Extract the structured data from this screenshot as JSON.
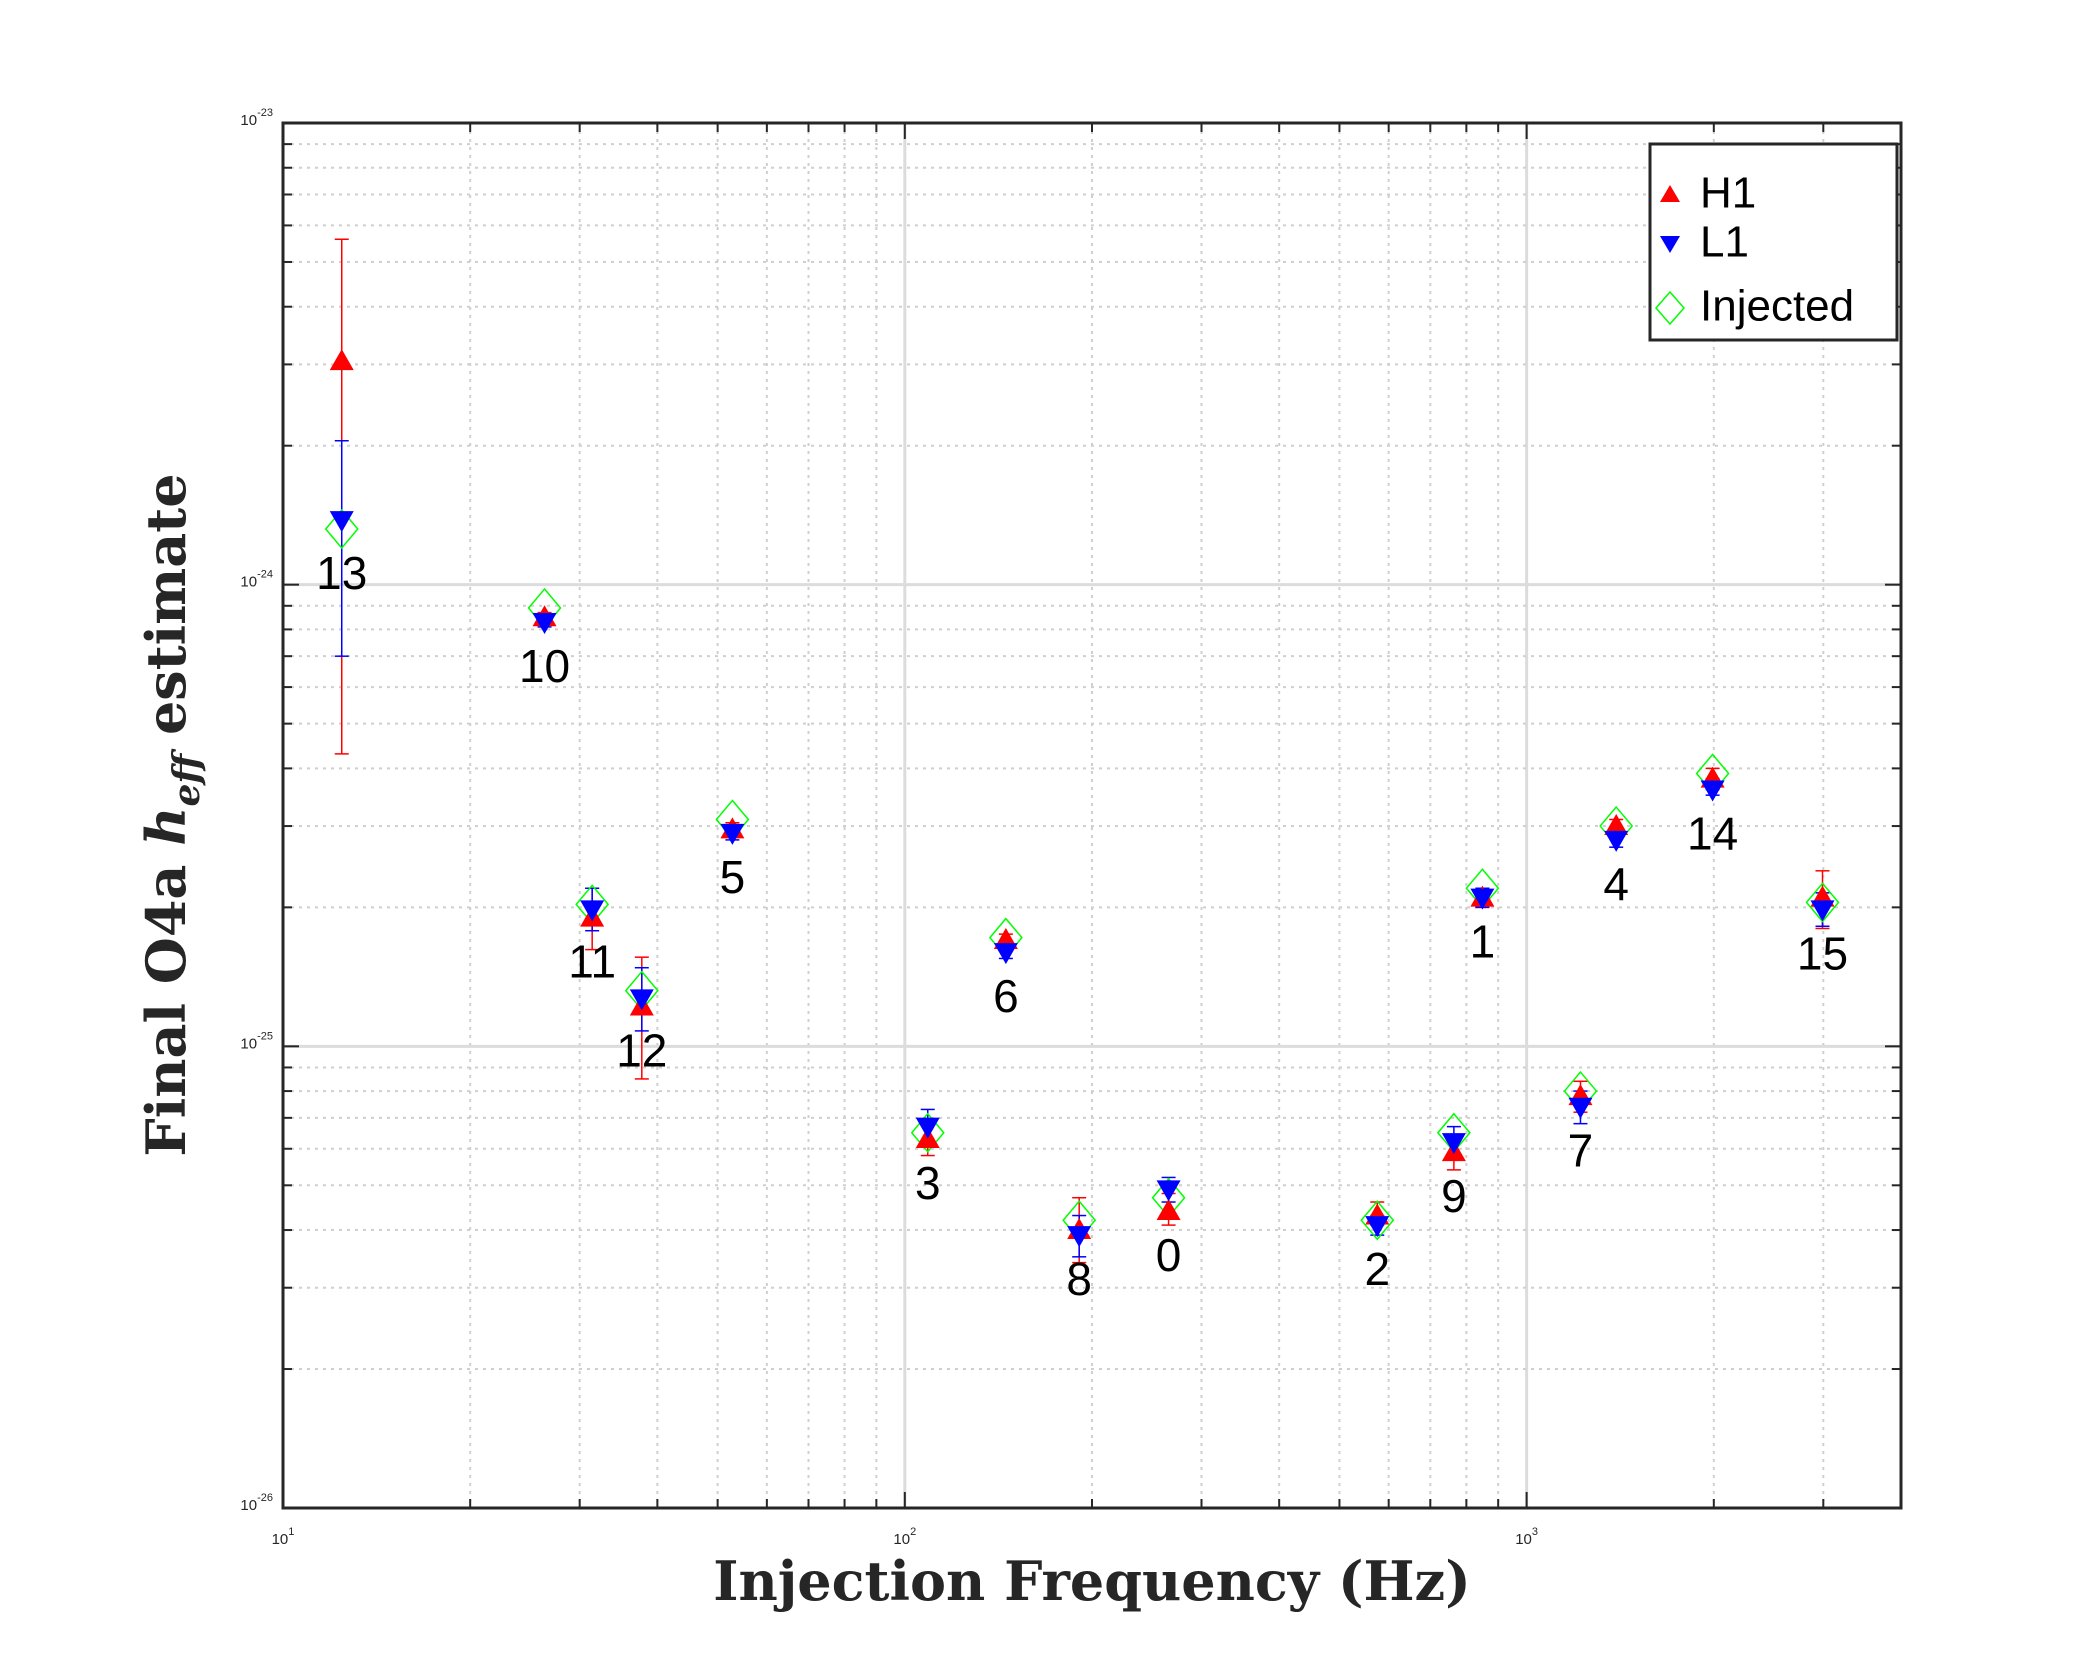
{
  "chart_data": {
    "type": "scatter",
    "title": "",
    "xlabel": "Injection Frequency (Hz)",
    "ylabel_prefix": "Final O4a ",
    "ylabel_h": "h",
    "ylabel_sub": "eff",
    "ylabel_suffix": " estimate",
    "xscale": "log",
    "yscale": "log",
    "xlim": [
      10,
      4000
    ],
    "ylim": [
      1e-26,
      1e-23
    ],
    "grid": true,
    "legend_position": "top-right",
    "x_tick_labels": [
      {
        "value": 10,
        "base": "10",
        "exp": "1"
      },
      {
        "value": 100,
        "base": "10",
        "exp": "2"
      },
      {
        "value": 1000,
        "base": "10",
        "exp": "3"
      }
    ],
    "y_tick_labels": [
      {
        "value": 1e-26,
        "base": "10",
        "exp": "-26"
      },
      {
        "value": 1e-25,
        "base": "10",
        "exp": "-25"
      },
      {
        "value": 1e-24,
        "base": "10",
        "exp": "-24"
      },
      {
        "value": 1e-23,
        "base": "10",
        "exp": "-23"
      }
    ],
    "series": [
      {
        "name": "H1",
        "marker": "triangle-up",
        "color": "#ff0000"
      },
      {
        "name": "L1",
        "marker": "triangle-down",
        "color": "#0000ff"
      },
      {
        "name": "Injected",
        "marker": "diamond-open",
        "color": "#00ff00"
      }
    ],
    "points": [
      {
        "label": "0",
        "f": 265.58,
        "h1": 4.4e-26,
        "h1_err": [
          4.1e-26,
          4.8e-26
        ],
        "l1": 4.9e-26,
        "l1_err": [
          4.6e-26,
          5.2e-26
        ],
        "inj": 4.7e-26
      },
      {
        "label": "1",
        "f": 848.93,
        "h1": 2.1e-25,
        "h1_err": [
          2e-25,
          2.2e-25
        ],
        "l1": 2.1e-25,
        "l1_err": [
          2e-25,
          2.2e-25
        ],
        "inj": 2.2e-25
      },
      {
        "label": "2",
        "f": 575.16,
        "h1": 4.3e-26,
        "h1_err": [
          4.1e-26,
          4.6e-26
        ],
        "l1": 4.1e-26,
        "l1_err": [
          3.9e-26,
          4.3e-26
        ],
        "inj": 4.2e-26
      },
      {
        "label": "3",
        "f": 108.86,
        "h1": 6.3e-26,
        "h1_err": [
          5.8e-26,
          6.9e-26
        ],
        "l1": 6.7e-26,
        "l1_err": [
          6.2e-26,
          7.3e-26
        ],
        "inj": 6.5e-26
      },
      {
        "label": "4",
        "f": 1393.3,
        "h1": 3e-25,
        "h1_err": [
          2.9e-25,
          3.1e-25
        ],
        "l1": 2.8e-25,
        "l1_err": [
          2.7e-25,
          2.9e-25
        ],
        "inj": 3e-25
      },
      {
        "label": "5",
        "f": 52.81,
        "h1": 2.95e-25,
        "h1_err": [
          2.85e-25,
          3.05e-25
        ],
        "l1": 2.9e-25,
        "l1_err": [
          2.8e-25,
          3e-25
        ],
        "inj": 3.1e-25
      },
      {
        "label": "6",
        "f": 145.39,
        "h1": 1.7e-25,
        "h1_err": [
          1.65e-25,
          1.75e-25
        ],
        "l1": 1.6e-25,
        "l1_err": [
          1.55e-25,
          1.65e-25
        ],
        "inj": 1.72e-25
      },
      {
        "label": "7",
        "f": 1220.6,
        "h1": 7.8e-26,
        "h1_err": [
          7.2e-26,
          8.4e-26
        ],
        "l1": 7.4e-26,
        "l1_err": [
          6.8e-26,
          8e-26
        ],
        "inj": 8e-26
      },
      {
        "label": "8",
        "f": 190.73,
        "h1": 4e-26,
        "h1_err": [
          3.4e-26,
          4.7e-26
        ],
        "l1": 3.9e-26,
        "l1_err": [
          3.5e-26,
          4.3e-26
        ],
        "inj": 4.2e-26
      },
      {
        "label": "9",
        "f": 763.85,
        "h1": 5.9e-26,
        "h1_err": [
          5.4e-26,
          6.4e-26
        ],
        "l1": 6.2e-26,
        "l1_err": [
          5.8e-26,
          6.7e-26
        ],
        "inj": 6.5e-26
      },
      {
        "label": "10",
        "f": 26.34,
        "h1": 8.5e-25,
        "h1_err": [
          8.3e-25,
          8.7e-25
        ],
        "l1": 8.3e-25,
        "l1_err": [
          8.1e-25,
          8.5e-25
        ],
        "inj": 8.9e-25
      },
      {
        "label": "11",
        "f": 31.42,
        "h1": 1.9e-25,
        "h1_err": [
          1.62e-25,
          2.2e-25
        ],
        "l1": 1.98e-25,
        "l1_err": [
          1.78e-25,
          2.2e-25
        ],
        "inj": 2.03e-25
      },
      {
        "label": "12",
        "f": 37.76,
        "h1": 1.22e-25,
        "h1_err": [
          8.5e-26,
          1.56e-25
        ],
        "l1": 1.27e-25,
        "l1_err": [
          1.08e-25,
          1.48e-25
        ],
        "inj": 1.32e-25
      },
      {
        "label": "13",
        "f": 12.43,
        "h1": 3.05e-24,
        "h1_err": [
          4.3e-25,
          5.6e-24
        ],
        "l1": 1.38e-24,
        "l1_err": [
          7e-25,
          2.05e-24
        ],
        "inj": 1.32e-24
      },
      {
        "label": "14",
        "f": 1991.1,
        "h1": 3.8e-25,
        "h1_err": [
          3.6e-25,
          4e-25
        ],
        "l1": 3.6e-25,
        "l1_err": [
          3.5e-25,
          3.8e-25
        ],
        "inj": 3.9e-25
      },
      {
        "label": "15",
        "f": 2991.1,
        "h1": 2.1e-25,
        "h1_err": [
          1.8e-25,
          2.4e-25
        ],
        "l1": 1.98e-25,
        "l1_err": [
          1.82e-25,
          2.15e-25
        ],
        "inj": 2.05e-25
      }
    ]
  }
}
